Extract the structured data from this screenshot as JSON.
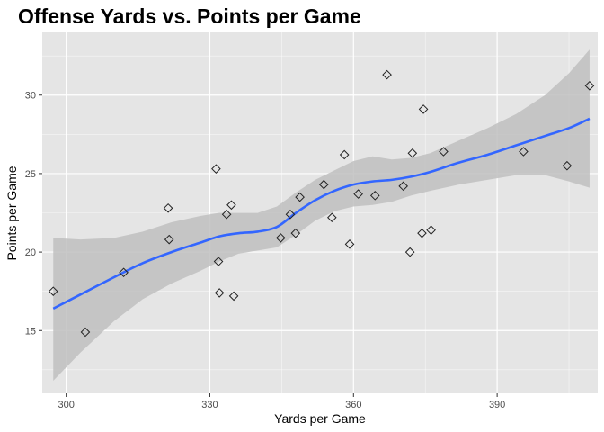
{
  "chart_data": {
    "type": "scatter",
    "title": "Offense Yards vs. Points per Game",
    "xlabel": "Yards per Game",
    "ylabel": "Points per Game",
    "xlim": [
      295,
      411
    ],
    "ylim": [
      11,
      34
    ],
    "x_ticks": [
      300,
      330,
      360,
      390
    ],
    "y_ticks": [
      15,
      20,
      25,
      30
    ],
    "grid": true,
    "marker": "open-diamond",
    "colors": {
      "panel": "#e5e5e5",
      "grid_major": "#ffffff",
      "smooth_line": "#3366ff",
      "ribbon": "#bfbfbf",
      "point_stroke": "#222222"
    },
    "points": [
      {
        "x": 297.3,
        "y": 17.5
      },
      {
        "x": 304.0,
        "y": 14.9
      },
      {
        "x": 312.0,
        "y": 18.7
      },
      {
        "x": 321.3,
        "y": 22.8
      },
      {
        "x": 321.5,
        "y": 20.8
      },
      {
        "x": 331.3,
        "y": 25.3
      },
      {
        "x": 331.8,
        "y": 19.4
      },
      {
        "x": 332.0,
        "y": 17.4
      },
      {
        "x": 333.5,
        "y": 22.4
      },
      {
        "x": 334.5,
        "y": 23.0
      },
      {
        "x": 335.0,
        "y": 17.2
      },
      {
        "x": 344.8,
        "y": 20.9
      },
      {
        "x": 346.8,
        "y": 22.4
      },
      {
        "x": 347.9,
        "y": 21.2
      },
      {
        "x": 348.8,
        "y": 23.5
      },
      {
        "x": 353.8,
        "y": 24.3
      },
      {
        "x": 355.5,
        "y": 22.2
      },
      {
        "x": 358.1,
        "y": 26.2
      },
      {
        "x": 359.2,
        "y": 20.5
      },
      {
        "x": 361.0,
        "y": 23.7
      },
      {
        "x": 364.5,
        "y": 23.6
      },
      {
        "x": 367.0,
        "y": 31.3
      },
      {
        "x": 370.4,
        "y": 24.2
      },
      {
        "x": 371.8,
        "y": 20.0
      },
      {
        "x": 372.3,
        "y": 26.3
      },
      {
        "x": 374.3,
        "y": 21.2
      },
      {
        "x": 374.6,
        "y": 29.1
      },
      {
        "x": 376.2,
        "y": 21.4
      },
      {
        "x": 378.8,
        "y": 26.4
      },
      {
        "x": 395.5,
        "y": 26.4
      },
      {
        "x": 404.6,
        "y": 25.5
      },
      {
        "x": 409.3,
        "y": 30.6
      }
    ],
    "smooth": [
      {
        "x": 297.3,
        "y": 16.4,
        "lo": 11.8,
        "hi": 20.9
      },
      {
        "x": 303,
        "y": 17.3,
        "lo": 13.6,
        "hi": 20.8
      },
      {
        "x": 310,
        "y": 18.4,
        "lo": 15.6,
        "hi": 20.9
      },
      {
        "x": 316,
        "y": 19.3,
        "lo": 17.0,
        "hi": 21.3
      },
      {
        "x": 322,
        "y": 20.0,
        "lo": 18.0,
        "hi": 21.9
      },
      {
        "x": 328,
        "y": 20.6,
        "lo": 18.8,
        "hi": 22.3
      },
      {
        "x": 332,
        "y": 21.0,
        "lo": 19.4,
        "hi": 22.5
      },
      {
        "x": 336,
        "y": 21.2,
        "lo": 19.9,
        "hi": 22.5
      },
      {
        "x": 340,
        "y": 21.3,
        "lo": 20.1,
        "hi": 22.5
      },
      {
        "x": 344,
        "y": 21.6,
        "lo": 20.3,
        "hi": 22.9
      },
      {
        "x": 348,
        "y": 22.5,
        "lo": 21.1,
        "hi": 23.8
      },
      {
        "x": 352,
        "y": 23.3,
        "lo": 22.0,
        "hi": 24.6
      },
      {
        "x": 356,
        "y": 23.9,
        "lo": 22.6,
        "hi": 25.2
      },
      {
        "x": 360,
        "y": 24.3,
        "lo": 22.9,
        "hi": 25.8
      },
      {
        "x": 364,
        "y": 24.5,
        "lo": 23.0,
        "hi": 26.1
      },
      {
        "x": 368,
        "y": 24.6,
        "lo": 23.2,
        "hi": 25.9
      },
      {
        "x": 372,
        "y": 24.8,
        "lo": 23.6,
        "hi": 26.0
      },
      {
        "x": 376,
        "y": 25.1,
        "lo": 23.9,
        "hi": 26.3
      },
      {
        "x": 382,
        "y": 25.7,
        "lo": 24.3,
        "hi": 27.1
      },
      {
        "x": 388,
        "y": 26.2,
        "lo": 24.6,
        "hi": 27.9
      },
      {
        "x": 394,
        "y": 26.8,
        "lo": 24.9,
        "hi": 28.8
      },
      {
        "x": 400,
        "y": 27.4,
        "lo": 24.9,
        "hi": 30.0
      },
      {
        "x": 405,
        "y": 27.9,
        "lo": 24.5,
        "hi": 31.4
      },
      {
        "x": 409.3,
        "y": 28.5,
        "lo": 24.1,
        "hi": 32.9
      }
    ]
  }
}
